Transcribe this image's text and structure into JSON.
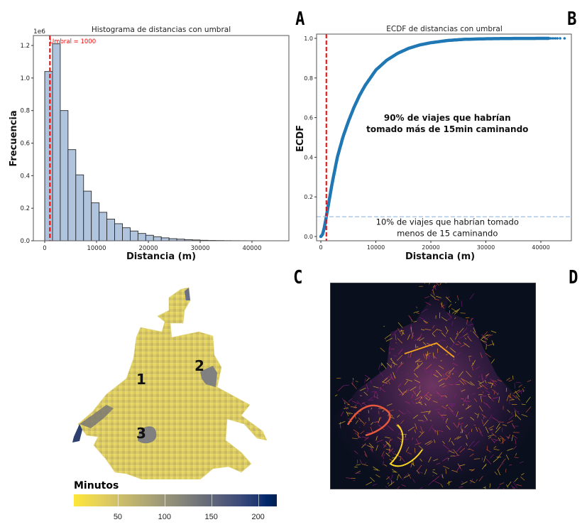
{
  "panel_labels": {
    "a": "A",
    "b": "B",
    "c": "C",
    "d": "D"
  },
  "chart_data": [
    {
      "type": "bar",
      "id": "histogram",
      "title": "Histograma de distancias con umbral",
      "xlabel": "Distancia (m)",
      "ylabel": "Frecuencia",
      "y_multiplier_label": "1e6",
      "xlim": [
        -2200,
        46000
      ],
      "ylim": [
        0,
        1.27
      ],
      "xticks": [
        0,
        10000,
        20000,
        30000,
        40000
      ],
      "xtick_labels": [
        "0",
        "10000",
        "20000",
        "30000",
        "40000"
      ],
      "yticks": [
        0.0,
        0.2,
        0.4,
        0.6,
        0.8,
        1.0,
        1.2
      ],
      "ytick_labels": [
        "0.0",
        "0.2",
        "0.4",
        "0.6",
        "0.8",
        "1.0",
        "1.2"
      ],
      "bin_width": 1500,
      "bin_start": 0,
      "values": [
        1.04,
        1.21,
        0.8,
        0.56,
        0.405,
        0.305,
        0.233,
        0.175,
        0.133,
        0.105,
        0.08,
        0.06,
        0.045,
        0.034,
        0.025,
        0.018,
        0.013,
        0.01,
        0.007,
        0.005,
        0.003,
        0.002,
        0.0015,
        0.001,
        0.0007,
        0.0005,
        0.0003,
        0.0002,
        0.0001,
        0.0001
      ],
      "bar_color": "#b0c4de",
      "threshold": {
        "x": 1000,
        "label": "Umbral = 1000",
        "color": "#ff0000"
      },
      "grid": false
    },
    {
      "type": "scatter",
      "id": "ecdf",
      "title": "ECDF de distancias con umbral",
      "xlabel": "Distancia (m)",
      "ylabel": "ECDF",
      "xlim": [
        -2200,
        46000
      ],
      "ylim": [
        -0.03,
        1.03
      ],
      "xticks": [
        0,
        10000,
        20000,
        30000,
        40000
      ],
      "xtick_labels": [
        "0",
        "10000",
        "20000",
        "30000",
        "40000"
      ],
      "yticks": [
        0.0,
        0.2,
        0.4,
        0.6,
        0.8,
        1.0
      ],
      "ytick_labels": [
        "0.0",
        "0.2",
        "0.4",
        "0.6",
        "0.8",
        "1.0"
      ],
      "x": [
        0,
        300,
        600,
        1000,
        1500,
        2000,
        3000,
        4000,
        5000,
        6000,
        7000,
        8000,
        9000,
        10000,
        12000,
        14000,
        16000,
        18000,
        20000,
        23000,
        26000,
        30000,
        35000,
        40000,
        41500,
        42500,
        43000,
        43500,
        44300
      ],
      "y": [
        0.0,
        0.01,
        0.04,
        0.1,
        0.18,
        0.26,
        0.4,
        0.5,
        0.58,
        0.65,
        0.71,
        0.76,
        0.8,
        0.84,
        0.89,
        0.925,
        0.95,
        0.967,
        0.978,
        0.989,
        0.995,
        0.998,
        0.9995,
        0.9999,
        1.0,
        1.0,
        1.0,
        1.0,
        1.0
      ],
      "point_color": "#1f77b4",
      "threshold_vertical": {
        "x": 1000,
        "color": "#ff0000"
      },
      "threshold_horizontal": {
        "y": 0.1,
        "color": "#9dbfe3"
      },
      "annotations": [
        {
          "lines": [
            "90% de viajes que habrían",
            "tomado más de 15min caminando"
          ],
          "bold": true,
          "x": 23000,
          "y": 0.57
        },
        {
          "lines": [
            "10% de viajes que habrían tomado",
            "menos de 15 caminando"
          ],
          "bold": false,
          "x": 23000,
          "y": 0.045
        }
      ],
      "grid": false
    }
  ],
  "map_c": {
    "zone_labels": [
      "1",
      "2",
      "3"
    ],
    "legend_title": "Minutos",
    "colorbar_min": 3,
    "colorbar_max": 220,
    "colorbar_ticks": [
      50,
      100,
      150,
      200
    ],
    "colorbar_tick_labels": [
      "50",
      "100",
      "150",
      "200"
    ],
    "colormap": "cividis (reversed: yellow low, navy high)"
  },
  "map_d": {
    "background": "#0a0f1e",
    "colormap": "plasma (purple/pink/orange/yellow network)"
  }
}
